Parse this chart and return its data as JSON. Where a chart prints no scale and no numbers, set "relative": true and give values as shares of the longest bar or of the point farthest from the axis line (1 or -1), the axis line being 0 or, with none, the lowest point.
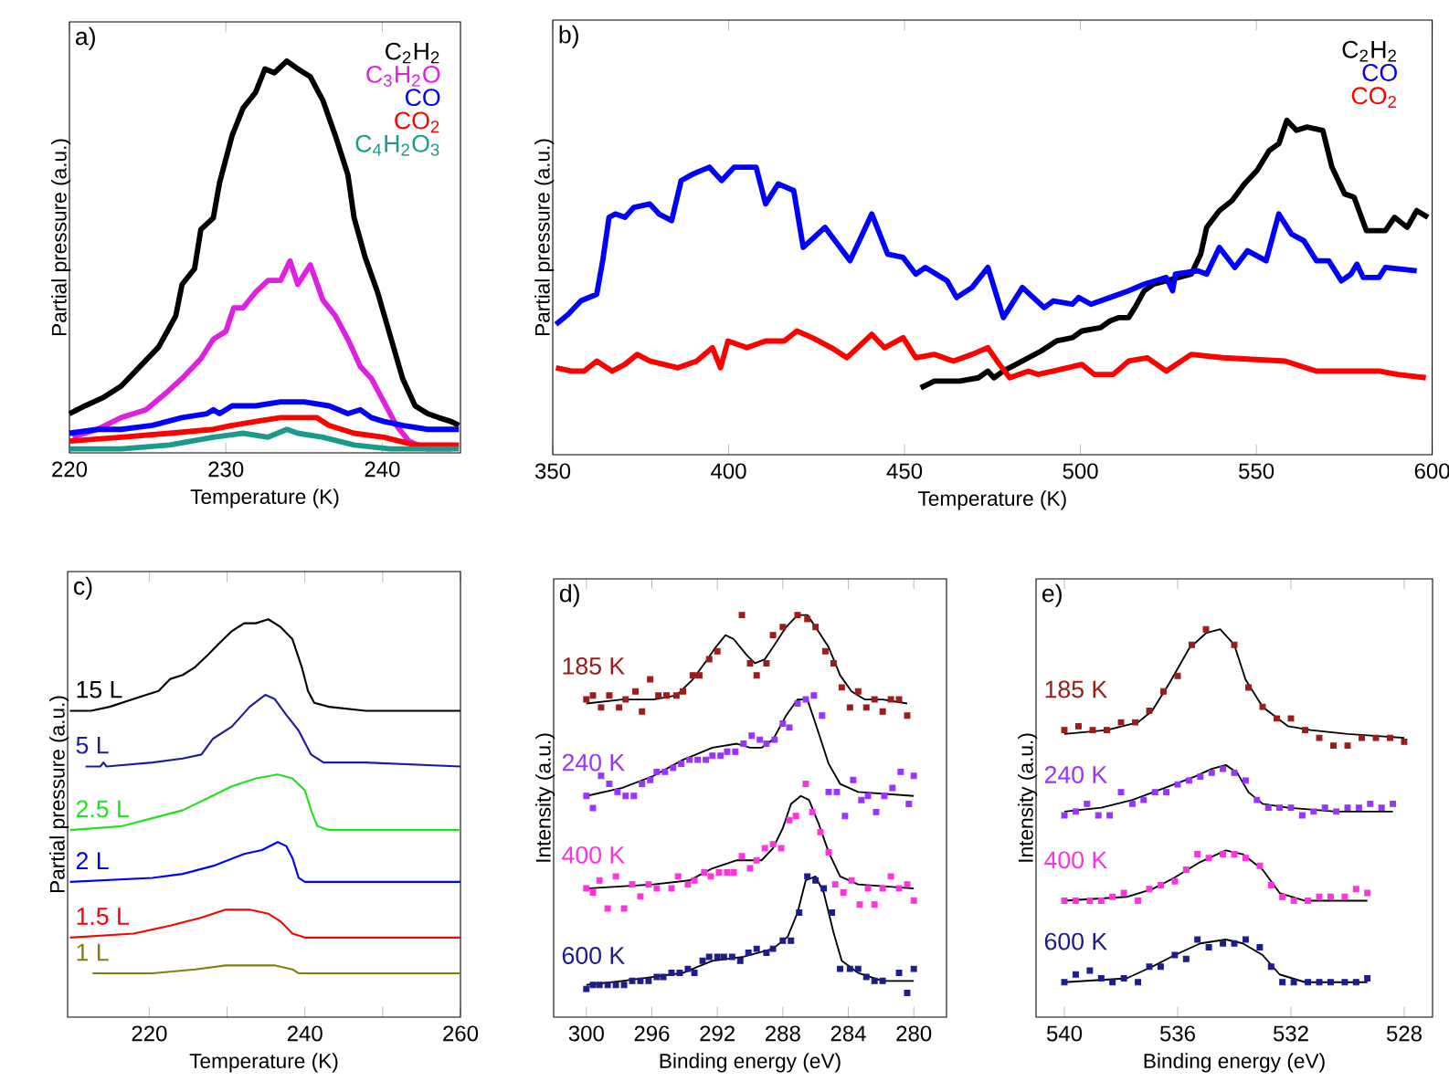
{
  "chart_data": [
    {
      "type": "line",
      "title": "a)",
      "xlabel": "Temperature (K)",
      "ylabel": "Partial pressure (a.u.)",
      "xlim": [
        220,
        245
      ],
      "xticks": [
        220,
        230,
        240
      ],
      "relative": true,
      "legend": "top right",
      "series": [
        {
          "name": "C$_{2}$H$_{2}$",
          "color": "#000000",
          "x": [
            220.0,
            221.0,
            222.1,
            223.3,
            224.5,
            225.7,
            226.8,
            227.2,
            228.0,
            228.4,
            229.2,
            229.6,
            230.4,
            231.1,
            231.9,
            232.5,
            233.1,
            233.9,
            234.6,
            235.4,
            236.2,
            237.0,
            237.8,
            238.2,
            238.9,
            239.7,
            240.5,
            241.3,
            242.1,
            242.9,
            243.6,
            244.4,
            244.9
          ],
          "values": [
            0.1,
            0.12,
            0.14,
            0.17,
            0.22,
            0.27,
            0.35,
            0.43,
            0.47,
            0.57,
            0.6,
            0.69,
            0.81,
            0.88,
            0.92,
            0.98,
            0.97,
            1.0,
            0.98,
            0.96,
            0.9,
            0.81,
            0.71,
            0.6,
            0.5,
            0.41,
            0.3,
            0.19,
            0.12,
            0.1,
            0.09,
            0.08,
            0.07
          ]
        },
        {
          "name": "C$_{3}$H$_{2}$O",
          "color": "#e020e0",
          "x": [
            220.2,
            221.8,
            223.3,
            224.9,
            226.1,
            227.2,
            228.4,
            229.2,
            230.0,
            230.5,
            231.1,
            231.9,
            232.7,
            233.5,
            234.1,
            234.6,
            235.4,
            236.2,
            237.0,
            237.8,
            238.6,
            239.3,
            240.1,
            240.9,
            241.7,
            242.9,
            244.4
          ],
          "values": [
            0.04,
            0.06,
            0.09,
            0.11,
            0.15,
            0.19,
            0.24,
            0.29,
            0.31,
            0.37,
            0.37,
            0.41,
            0.44,
            0.44,
            0.49,
            0.43,
            0.48,
            0.39,
            0.35,
            0.29,
            0.22,
            0.19,
            0.13,
            0.07,
            0.03,
            0.01,
            0.01
          ]
        },
        {
          "name": "CO",
          "color": "#0000ff",
          "x": [
            220.0,
            221.8,
            223.3,
            225.3,
            227.2,
            228.8,
            229.2,
            229.6,
            230.4,
            231.9,
            233.5,
            234.3,
            235.0,
            236.6,
            237.8,
            238.6,
            239.3,
            240.1,
            241.3,
            242.9,
            244.9
          ],
          "values": [
            0.05,
            0.06,
            0.06,
            0.07,
            0.09,
            0.1,
            0.11,
            0.1,
            0.12,
            0.12,
            0.13,
            0.13,
            0.13,
            0.12,
            0.1,
            0.11,
            0.09,
            0.08,
            0.07,
            0.06,
            0.06
          ]
        },
        {
          "name": "CO$_{2}$",
          "color": "#ff0000",
          "x": [
            220.0,
            223.3,
            226.4,
            229.2,
            230.4,
            231.9,
            233.5,
            235.0,
            235.8,
            236.6,
            238.2,
            240.1,
            242.1,
            244.9
          ],
          "values": [
            0.03,
            0.04,
            0.05,
            0.06,
            0.07,
            0.08,
            0.09,
            0.09,
            0.09,
            0.07,
            0.05,
            0.04,
            0.02,
            0.02
          ]
        },
        {
          "name": "C$_{4}$H$_{2}$O$_{3}$",
          "color": "#1a9a8a",
          "x": [
            220.0,
            223.3,
            226.4,
            229.2,
            231.1,
            232.7,
            233.9,
            234.6,
            236.2,
            238.2,
            240.5,
            244.9
          ],
          "values": [
            0.01,
            0.01,
            0.02,
            0.04,
            0.05,
            0.04,
            0.06,
            0.05,
            0.04,
            0.02,
            0.01,
            0.01
          ]
        }
      ]
    },
    {
      "type": "line",
      "title": "b)",
      "xlabel": "Temperature (K)",
      "ylabel": "Partial pressure (a.u.)",
      "xlim": [
        350,
        600
      ],
      "xticks": [
        350,
        400,
        450,
        500,
        550,
        600
      ],
      "relative": true,
      "legend": "top right",
      "series": [
        {
          "name": "C$_{2}$H$_{2}$",
          "color": "#000000",
          "x": [
            454.6,
            458.5,
            465.7,
            471.0,
            473.7,
            475.4,
            478.1,
            483.5,
            488.8,
            493.2,
            497.7,
            500.4,
            505.7,
            508.4,
            511.0,
            513.7,
            515.5,
            518.1,
            520.8,
            524.4,
            527.9,
            531.5,
            534.2,
            535.9,
            539.5,
            543.1,
            546.6,
            550.2,
            553.7,
            556.4,
            558.7,
            561.4,
            564.4,
            568.9,
            571.5,
            575.1,
            577.8,
            581.3,
            584.0,
            586.7,
            589.3,
            592.9,
            595.6,
            598.8
          ],
          "values": [
            0.2,
            0.22,
            0.22,
            0.23,
            0.25,
            0.23,
            0.25,
            0.28,
            0.31,
            0.34,
            0.35,
            0.37,
            0.38,
            0.4,
            0.41,
            0.41,
            0.44,
            0.49,
            0.51,
            0.52,
            0.53,
            0.54,
            0.6,
            0.68,
            0.73,
            0.76,
            0.81,
            0.85,
            0.91,
            0.93,
            1.0,
            0.97,
            0.98,
            0.97,
            0.86,
            0.78,
            0.77,
            0.67,
            0.67,
            0.67,
            0.71,
            0.68,
            0.73,
            0.71
          ]
        },
        {
          "name": "CO",
          "color": "#0000ff",
          "x": [
            350.9,
            354.4,
            358.0,
            362.5,
            364.2,
            366.0,
            367.8,
            370.5,
            373.1,
            377.6,
            380.2,
            383.8,
            386.5,
            390.0,
            394.5,
            398.0,
            401.6,
            407.8,
            410.5,
            414.1,
            418.5,
            421.2,
            427.4,
            434.5,
            440.7,
            445.2,
            449.6,
            453.2,
            455.9,
            462.1,
            464.8,
            469.2,
            473.7,
            478.1,
            483.5,
            489.7,
            492.3,
            497.7,
            499.5,
            503.0,
            508.4,
            513.7,
            518.1,
            524.4,
            526.2,
            527.0,
            533.3,
            535.9,
            539.5,
            543.9,
            547.5,
            552.8,
            556.4,
            560.0,
            563.5,
            567.1,
            570.6,
            574.2,
            576.9,
            578.6,
            580.4,
            584.9,
            586.7,
            595.6
          ],
          "values": [
            0.39,
            0.42,
            0.46,
            0.48,
            0.58,
            0.71,
            0.72,
            0.71,
            0.74,
            0.75,
            0.72,
            0.7,
            0.82,
            0.84,
            0.86,
            0.82,
            0.86,
            0.86,
            0.75,
            0.81,
            0.79,
            0.62,
            0.68,
            0.58,
            0.72,
            0.6,
            0.59,
            0.54,
            0.56,
            0.52,
            0.47,
            0.5,
            0.56,
            0.41,
            0.5,
            0.44,
            0.46,
            0.45,
            0.47,
            0.45,
            0.47,
            0.49,
            0.51,
            0.53,
            0.49,
            0.54,
            0.55,
            0.54,
            0.62,
            0.56,
            0.61,
            0.58,
            0.72,
            0.66,
            0.64,
            0.58,
            0.58,
            0.52,
            0.54,
            0.57,
            0.53,
            0.53,
            0.56,
            0.55
          ]
        },
        {
          "name": "CO$_{2}$",
          "color": "#ff0000",
          "x": [
            350.9,
            355.3,
            358.9,
            362.5,
            366.9,
            370.5,
            374.0,
            377.6,
            385.6,
            390.9,
            395.4,
            397.7,
            399.8,
            405.2,
            410.5,
            415.8,
            419.4,
            423.8,
            429.2,
            433.6,
            440.7,
            444.3,
            449.6,
            453.2,
            458.5,
            463.9,
            469.2,
            473.7,
            476.3,
            479.9,
            485.2,
            487.9,
            492.3,
            500.4,
            503.9,
            509.3,
            513.7,
            519.0,
            524.4,
            531.5,
            540.4,
            558.2,
            567.1,
            584.9,
            590.2,
            598.2
          ],
          "values": [
            0.26,
            0.25,
            0.25,
            0.28,
            0.25,
            0.27,
            0.3,
            0.28,
            0.26,
            0.28,
            0.32,
            0.26,
            0.34,
            0.32,
            0.34,
            0.34,
            0.37,
            0.35,
            0.32,
            0.29,
            0.36,
            0.32,
            0.35,
            0.29,
            0.3,
            0.28,
            0.3,
            0.32,
            0.28,
            0.23,
            0.25,
            0.24,
            0.25,
            0.27,
            0.24,
            0.24,
            0.28,
            0.29,
            0.25,
            0.3,
            0.29,
            0.28,
            0.25,
            0.25,
            0.24,
            0.23
          ]
        }
      ]
    },
    {
      "type": "line",
      "title": "c)",
      "xlabel": "Temperature (K)",
      "ylabel": "Partial pressure (a.u.)",
      "xlim": [
        209.5,
        260
      ],
      "xticks": [
        220,
        {
          "value": 230,
          "label": null
        },
        240,
        {
          "value": 250,
          "label": null
        },
        260
      ],
      "relative": true,
      "series": [
        {
          "name": "15 L",
          "color": "#000000",
          "x": [
            209.8,
            212.5,
            214.9,
            218.0,
            221.2,
            222.7,
            224.3,
            225.9,
            227.5,
            229.0,
            230.6,
            232.2,
            233.7,
            235.3,
            236.9,
            238.4,
            239.6,
            240.4,
            241.2,
            243.1,
            247.8,
            260.0
          ],
          "values": [
            0.77,
            0.77,
            0.78,
            0.8,
            0.82,
            0.85,
            0.86,
            0.88,
            0.91,
            0.94,
            0.97,
            0.99,
            0.99,
            1.0,
            0.98,
            0.95,
            0.88,
            0.82,
            0.79,
            0.78,
            0.77,
            0.77
          ]
        },
        {
          "name": "5 L",
          "color": "#1c1c9c",
          "x": [
            211.8,
            213.7,
            214.1,
            214.5,
            220.4,
            224.3,
            226.7,
            228.2,
            230.6,
            232.9,
            234.9,
            236.1,
            237.6,
            239.2,
            240.8,
            242.4,
            247.8,
            260.0
          ],
          "values": [
            0.63,
            0.63,
            0.64,
            0.63,
            0.64,
            0.65,
            0.66,
            0.7,
            0.73,
            0.78,
            0.81,
            0.8,
            0.76,
            0.72,
            0.66,
            0.64,
            0.64,
            0.63
          ]
        },
        {
          "name": "2.5 L",
          "color": "#22e022",
          "x": [
            209.8,
            216.5,
            220.4,
            224.3,
            227.5,
            230.6,
            233.7,
            236.5,
            238.4,
            240.0,
            240.8,
            241.6,
            243.1,
            260.0
          ],
          "values": [
            0.47,
            0.48,
            0.5,
            0.52,
            0.55,
            0.58,
            0.6,
            0.61,
            0.6,
            0.57,
            0.52,
            0.48,
            0.47,
            0.47
          ]
        },
        {
          "name": "2 L",
          "color": "#0000ff",
          "x": [
            209.8,
            220.4,
            224.3,
            228.2,
            232.2,
            234.5,
            236.5,
            237.6,
            238.4,
            239.2,
            240.0,
            260.0
          ],
          "values": [
            0.34,
            0.35,
            0.36,
            0.38,
            0.41,
            0.42,
            0.44,
            0.43,
            0.4,
            0.35,
            0.34,
            0.34
          ]
        },
        {
          "name": "1.5 L",
          "color": "#ff0000",
          "x": [
            209.8,
            218.0,
            222.7,
            226.7,
            229.8,
            232.9,
            235.3,
            236.9,
            238.4,
            240.0,
            260.0
          ],
          "values": [
            0.2,
            0.21,
            0.23,
            0.25,
            0.27,
            0.27,
            0.26,
            0.24,
            0.21,
            0.2,
            0.2
          ]
        },
        {
          "name": "1 L",
          "color": "#808010",
          "x": [
            212.7,
            220.4,
            225.9,
            229.8,
            232.9,
            236.1,
            238.4,
            239.2,
            260.0
          ],
          "values": [
            0.11,
            0.11,
            0.12,
            0.13,
            0.13,
            0.13,
            0.12,
            0.11,
            0.11
          ]
        }
      ]
    },
    {
      "type": "scatter",
      "title": "d)",
      "xlabel": "Binding energy (eV)",
      "ylabel": "Intensity (a.u.)",
      "xlim": [
        302,
        278
      ],
      "xticks": [
        300,
        296,
        292,
        288,
        284,
        280
      ],
      "relative": true,
      "series": [
        {
          "name": "185 K",
          "color": "#9b1c1c",
          "marker": "square",
          "x": [
            300.0,
            299.6,
            299.1,
            298.6,
            298.0,
            297.6,
            297.0,
            296.6,
            296.1,
            295.6,
            295.1,
            294.5,
            294.1,
            293.5,
            293.1,
            292.5,
            292.0,
            290.5,
            290.0,
            289.6,
            289.0,
            288.6,
            288.0,
            287.1,
            286.5,
            286.0,
            285.4,
            284.9,
            284.4,
            283.9,
            283.4,
            282.9,
            282.4,
            281.9,
            281.4,
            280.9,
            280.4
          ],
          "values": [
            0.79,
            0.8,
            0.77,
            0.8,
            0.77,
            0.79,
            0.81,
            0.76,
            0.84,
            0.8,
            0.8,
            0.8,
            0.81,
            0.85,
            0.85,
            0.89,
            0.91,
            1.0,
            0.88,
            0.85,
            0.88,
            0.95,
            0.97,
            1.0,
            0.99,
            0.97,
            0.91,
            0.88,
            0.82,
            0.77,
            0.81,
            0.77,
            0.79,
            0.76,
            0.79,
            0.79,
            0.75
          ]
        },
        {
          "type": "line",
          "color": "#000000",
          "x": [
            300.0,
            297.8,
            295.9,
            294.5,
            293.5,
            292.6,
            292.1,
            291.5,
            291.0,
            290.2,
            289.7,
            289.1,
            288.6,
            287.8,
            287.1,
            286.5,
            286.0,
            285.2,
            284.5,
            283.8,
            283.0,
            281.9,
            280.4
          ],
          "values": [
            0.78,
            0.79,
            0.79,
            0.8,
            0.84,
            0.89,
            0.92,
            0.95,
            0.94,
            0.9,
            0.88,
            0.89,
            0.92,
            0.97,
            1.0,
            1.0,
            0.97,
            0.92,
            0.85,
            0.81,
            0.79,
            0.79,
            0.78
          ]
        },
        {
          "name": "240 K",
          "color": "#9933ff",
          "marker": "square",
          "x": [
            300.0,
            299.6,
            299.1,
            298.6,
            298.1,
            297.6,
            297.1,
            296.6,
            296.1,
            295.7,
            295.2,
            294.7,
            294.2,
            293.7,
            293.2,
            292.7,
            292.3,
            291.8,
            291.4,
            290.9,
            290.4,
            289.9,
            289.4,
            289.0,
            288.5,
            288.0,
            287.6,
            287.1,
            286.6,
            286.1,
            285.6,
            285.2,
            284.7,
            284.2,
            283.7,
            283.2,
            282.8,
            282.3,
            281.8,
            281.3,
            280.8,
            280.3,
            280.0
          ],
          "values": [
            0.55,
            0.52,
            0.6,
            0.58,
            0.56,
            0.55,
            0.55,
            0.58,
            0.59,
            0.61,
            0.61,
            0.62,
            0.63,
            0.64,
            0.64,
            0.64,
            0.65,
            0.65,
            0.66,
            0.66,
            0.68,
            0.7,
            0.69,
            0.68,
            0.69,
            0.73,
            0.72,
            0.78,
            0.79,
            0.8,
            0.75,
            0.56,
            0.56,
            0.5,
            0.59,
            0.54,
            0.55,
            0.51,
            0.55,
            0.57,
            0.61,
            0.53,
            0.6
          ]
        },
        {
          "type": "line",
          "color": "#000000",
          "x": [
            300.0,
            297.8,
            295.9,
            294.1,
            292.3,
            290.8,
            290.0,
            289.3,
            288.6,
            287.8,
            287.1,
            286.5,
            286.0,
            285.2,
            284.5,
            283.4,
            280.0
          ],
          "values": [
            0.55,
            0.57,
            0.6,
            0.64,
            0.67,
            0.68,
            0.67,
            0.67,
            0.69,
            0.75,
            0.79,
            0.79,
            0.73,
            0.63,
            0.58,
            0.56,
            0.55
          ]
        },
        {
          "name": "400 K",
          "color": "#ff33dd",
          "marker": "square",
          "x": [
            300.0,
            299.6,
            299.2,
            298.7,
            298.2,
            297.7,
            297.2,
            296.7,
            296.2,
            295.7,
            294.8,
            294.4,
            293.8,
            293.4,
            292.8,
            292.4,
            291.9,
            291.4,
            291.0,
            290.5,
            290.0,
            289.6,
            289.1,
            288.6,
            288.1,
            287.6,
            287.2,
            286.6,
            286.2,
            285.7,
            285.2,
            284.8,
            284.3,
            283.8,
            283.3,
            282.8,
            282.4,
            281.9,
            281.4,
            280.9,
            280.4,
            280.0
          ],
          "values": [
            0.32,
            0.31,
            0.34,
            0.27,
            0.35,
            0.27,
            0.33,
            0.3,
            0.33,
            0.32,
            0.32,
            0.35,
            0.33,
            0.34,
            0.36,
            0.35,
            0.36,
            0.36,
            0.36,
            0.4,
            0.37,
            0.39,
            0.42,
            0.43,
            0.42,
            0.49,
            0.5,
            0.58,
            0.51,
            0.46,
            0.41,
            0.33,
            0.31,
            0.34,
            0.28,
            0.32,
            0.28,
            0.32,
            0.35,
            0.32,
            0.33,
            0.29
          ]
        },
        {
          "type": "line",
          "color": "#000000",
          "x": [
            300.0,
            295.9,
            293.7,
            292.3,
            290.8,
            289.3,
            288.6,
            288.0,
            287.5,
            286.9,
            286.4,
            285.8,
            285.2,
            284.5,
            283.4,
            280.0
          ],
          "values": [
            0.32,
            0.33,
            0.34,
            0.37,
            0.39,
            0.39,
            0.42,
            0.47,
            0.53,
            0.55,
            0.54,
            0.48,
            0.41,
            0.35,
            0.33,
            0.32
          ]
        },
        {
          "name": "600 K",
          "color": "#1c1c8c",
          "marker": "square",
          "x": [
            300.0,
            299.6,
            299.2,
            298.7,
            298.2,
            297.7,
            297.2,
            296.7,
            296.2,
            295.7,
            295.3,
            294.8,
            294.3,
            293.8,
            293.4,
            292.9,
            292.5,
            292.0,
            291.6,
            291.1,
            290.6,
            290.1,
            289.6,
            289.0,
            288.6,
            288.0,
            287.5,
            287.0,
            286.5,
            286.0,
            285.5,
            285.0,
            284.5,
            283.9,
            283.4,
            282.9,
            282.4,
            281.9,
            280.9,
            280.4,
            280.0
          ],
          "values": [
            0.07,
            0.08,
            0.08,
            0.08,
            0.08,
            0.08,
            0.09,
            0.09,
            0.09,
            0.1,
            0.1,
            0.11,
            0.11,
            0.12,
            0.11,
            0.14,
            0.15,
            0.15,
            0.15,
            0.15,
            0.14,
            0.16,
            0.17,
            0.16,
            0.17,
            0.19,
            0.19,
            0.26,
            0.35,
            0.34,
            0.32,
            0.26,
            0.12,
            0.12,
            0.12,
            0.1,
            0.09,
            0.09,
            0.11,
            0.06,
            0.12
          ]
        },
        {
          "type": "line",
          "color": "#000000",
          "x": [
            300.0,
            297.8,
            295.9,
            294.1,
            292.3,
            290.4,
            288.6,
            287.7,
            287.1,
            286.6,
            286.0,
            285.5,
            284.9,
            284.4,
            283.4,
            281.9,
            280.0
          ],
          "values": [
            0.08,
            0.09,
            0.1,
            0.11,
            0.14,
            0.15,
            0.17,
            0.2,
            0.26,
            0.34,
            0.35,
            0.31,
            0.21,
            0.14,
            0.11,
            0.09,
            0.09
          ]
        }
      ]
    },
    {
      "type": "scatter",
      "title": "e)",
      "xlabel": "Binding energy (eV)",
      "ylabel": "Intensity (a.u.)",
      "xlim": [
        541,
        527
      ],
      "xticks": [
        540,
        536,
        532,
        528
      ],
      "relative": true,
      "series": [
        {
          "name": "185 K",
          "color": "#9b1c1c",
          "marker": "square",
          "x": [
            540.0,
            539.5,
            539.0,
            538.5,
            538.0,
            537.5,
            537.0,
            536.5,
            536.0,
            535.5,
            535.0,
            534.0,
            533.5,
            533.0,
            532.5,
            532.0,
            531.5,
            531.0,
            530.5,
            530.0,
            529.5,
            529.0,
            528.5,
            528.0
          ],
          "values": [
            0.74,
            0.75,
            0.74,
            0.74,
            0.76,
            0.76,
            0.79,
            0.84,
            0.88,
            0.96,
            1.0,
            0.96,
            0.85,
            0.8,
            0.77,
            0.77,
            0.74,
            0.72,
            0.7,
            0.7,
            0.72,
            0.72,
            0.72,
            0.71
          ]
        },
        {
          "type": "line",
          "color": "#000000",
          "x": [
            540.0,
            538.5,
            537.4,
            536.9,
            536.3,
            535.6,
            535.0,
            534.5,
            534.0,
            533.6,
            533.0,
            532.1,
            531.3,
            530.0,
            528.0
          ],
          "values": [
            0.73,
            0.74,
            0.76,
            0.79,
            0.86,
            0.95,
            0.99,
            1.0,
            0.96,
            0.87,
            0.8,
            0.75,
            0.74,
            0.73,
            0.72
          ]
        },
        {
          "name": "240 K",
          "color": "#9933ff",
          "marker": "square",
          "x": [
            540.0,
            539.6,
            539.2,
            538.8,
            538.4,
            538.0,
            537.6,
            537.2,
            536.8,
            536.4,
            536.0,
            535.6,
            535.2,
            534.8,
            534.4,
            534.0,
            533.6,
            533.2,
            532.8,
            532.4,
            532.0,
            531.6,
            531.2,
            530.8,
            530.4,
            530.0,
            529.6,
            529.2,
            528.8,
            528.4
          ],
          "values": [
            0.52,
            0.53,
            0.55,
            0.52,
            0.52,
            0.58,
            0.55,
            0.56,
            0.58,
            0.58,
            0.6,
            0.61,
            0.62,
            0.63,
            0.64,
            0.63,
            0.61,
            0.56,
            0.54,
            0.54,
            0.54,
            0.52,
            0.53,
            0.54,
            0.53,
            0.54,
            0.54,
            0.55,
            0.54,
            0.55
          ]
        },
        {
          "type": "line",
          "color": "#000000",
          "x": [
            540.0,
            538.7,
            537.6,
            536.5,
            535.4,
            534.8,
            534.3,
            533.9,
            533.5,
            533.0,
            532.1,
            530.4,
            528.4
          ],
          "values": [
            0.53,
            0.54,
            0.56,
            0.59,
            0.62,
            0.64,
            0.65,
            0.63,
            0.58,
            0.55,
            0.54,
            0.53,
            0.53
          ]
        },
        {
          "name": "400 K",
          "color": "#ff33dd",
          "marker": "square",
          "x": [
            540.0,
            539.6,
            539.1,
            538.7,
            538.3,
            537.9,
            537.4,
            537.0,
            536.6,
            536.1,
            535.7,
            535.3,
            534.9,
            534.4,
            534.0,
            533.6,
            533.1,
            532.7,
            532.3,
            531.9,
            531.4,
            531.0,
            530.6,
            530.1,
            529.7,
            529.3
          ],
          "values": [
            0.3,
            0.3,
            0.3,
            0.3,
            0.31,
            0.32,
            0.3,
            0.33,
            0.34,
            0.35,
            0.38,
            0.42,
            0.41,
            0.42,
            0.42,
            0.41,
            0.39,
            0.34,
            0.31,
            0.3,
            0.3,
            0.31,
            0.31,
            0.31,
            0.33,
            0.32
          ]
        },
        {
          "type": "line",
          "color": "#000000",
          "x": [
            540.0,
            537.8,
            536.9,
            536.1,
            535.2,
            534.3,
            533.7,
            533.0,
            532.4,
            531.5,
            529.3
          ],
          "values": [
            0.3,
            0.31,
            0.33,
            0.36,
            0.4,
            0.43,
            0.42,
            0.38,
            0.32,
            0.3,
            0.3
          ]
        },
        {
          "name": "600 K",
          "color": "#1c1c8c",
          "marker": "square",
          "x": [
            540.0,
            539.6,
            539.1,
            538.7,
            538.3,
            537.9,
            537.4,
            537.0,
            536.6,
            536.1,
            535.7,
            535.3,
            534.9,
            534.4,
            534.0,
            533.6,
            533.1,
            532.7,
            532.3,
            531.9,
            531.4,
            531.0,
            530.6,
            530.1,
            529.7,
            529.3
          ],
          "values": [
            0.09,
            0.11,
            0.12,
            0.1,
            0.09,
            0.1,
            0.09,
            0.13,
            0.13,
            0.16,
            0.15,
            0.2,
            0.18,
            0.19,
            0.19,
            0.2,
            0.18,
            0.13,
            0.09,
            0.09,
            0.09,
            0.09,
            0.09,
            0.09,
            0.09,
            0.1
          ]
        },
        {
          "type": "line",
          "color": "#000000",
          "x": [
            540.0,
            537.8,
            536.9,
            536.1,
            535.2,
            534.3,
            533.7,
            533.0,
            532.4,
            531.5,
            529.3
          ],
          "values": [
            0.09,
            0.1,
            0.13,
            0.16,
            0.19,
            0.2,
            0.19,
            0.16,
            0.11,
            0.09,
            0.09
          ]
        }
      ]
    }
  ]
}
